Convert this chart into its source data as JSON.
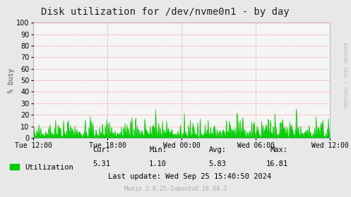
{
  "title": "Disk utilization for /dev/nvme0n1 - by day",
  "ylabel": "% busy",
  "bg_color": "#e8e8e8",
  "plot_bg_color": "#f5f5f5",
  "grid_color": "#ff8080",
  "line_color": "#00cc00",
  "fill_color": "#00cc00",
  "ylim": [
    0,
    100
  ],
  "yticks": [
    0,
    10,
    20,
    30,
    40,
    50,
    60,
    70,
    80,
    90,
    100
  ],
  "xtick_labels": [
    "Tue 12:00",
    "Tue 18:00",
    "Wed 00:00",
    "Wed 06:00",
    "Wed 12:00"
  ],
  "legend_label": "Utilization",
  "legend_color": "#00cc00",
  "cur_label": "Cur:",
  "cur_val": "5.31",
  "min_label": "Min:",
  "min_val": "1.10",
  "avg_label": "Avg:",
  "avg_val": "5.83",
  "max_label": "Max:",
  "max_val": "16.81",
  "last_update": "Last update: Wed Sep 25 15:40:50 2024",
  "munin_text": "Munin 2.0.25-2ubuntu0.16.04.3",
  "watermark": "RRDTOOL / TOBI OETIKER",
  "title_fontsize": 10,
  "axis_fontsize": 7,
  "legend_fontsize": 7.5,
  "stats_fontsize": 7.5,
  "munin_fontsize": 6,
  "watermark_fontsize": 5
}
